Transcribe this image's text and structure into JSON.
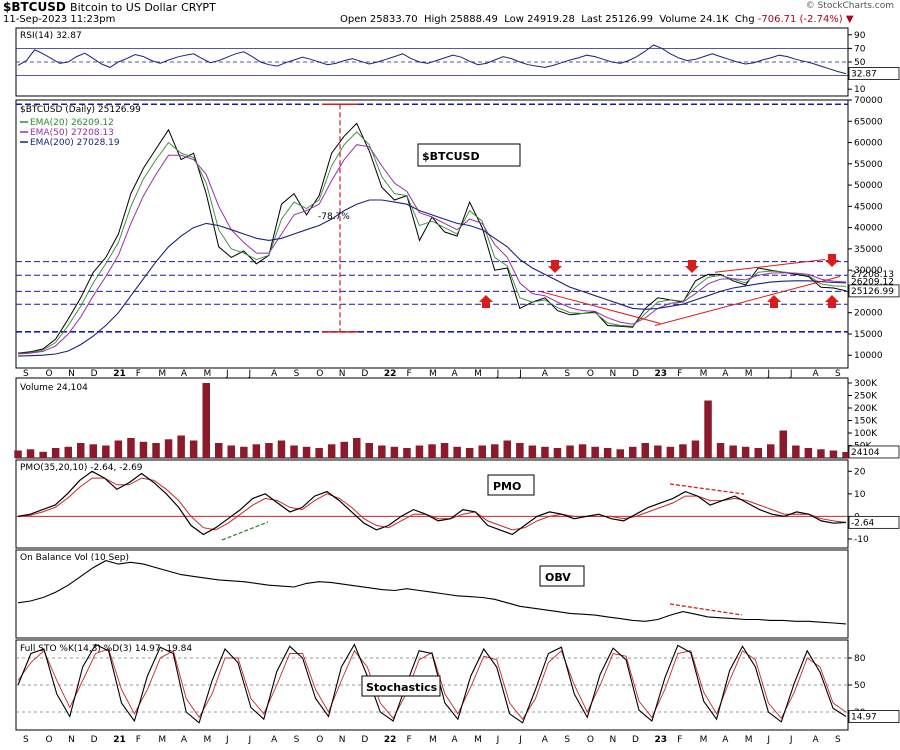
{
  "header": {
    "symbol": "$BTCUSD",
    "name": "Bitcoin to US Dollar",
    "exchange": "CRYPT",
    "date": "11-Sep-2023 11:23pm",
    "watermark": "© StockCharts.com",
    "quote": {
      "open_label": "Open",
      "open": "25833.70",
      "high_label": "High",
      "high": "25888.49",
      "low_label": "Low",
      "low": "24919.28",
      "last_label": "Last",
      "last": "25126.99",
      "volume_label": "Volume",
      "volume": "24.1K",
      "chg_label": "Chg",
      "chg": "-706.71 (-2.74%)"
    }
  },
  "colors": {
    "price": "#000000",
    "ema20": "#2e8b2e",
    "ema50": "#9b2fae",
    "ema200": "#1a237e",
    "rsi": "#1a237e",
    "volume": "#8b1a2b",
    "pmo": "#000000",
    "pmo_signal": "#c62828",
    "support_line": "#1a1aa6",
    "annotation_red": "#d81b1b",
    "annotation_green": "#2e8b2e"
  },
  "chart_data": [
    {
      "type": "line",
      "panel": "rsi",
      "label": "RSI(14) 32.87",
      "last_value_label": "32.87",
      "y_ticks": [
        "90",
        "70",
        "50",
        "30",
        "10"
      ],
      "ylim": [
        0,
        100
      ],
      "values": [
        45,
        52,
        68,
        62,
        55,
        48,
        50,
        58,
        63,
        55,
        47,
        42,
        50,
        55,
        61,
        58,
        52,
        48,
        53,
        57,
        60,
        62,
        55,
        49,
        52,
        57,
        62,
        65,
        58,
        50,
        46,
        44,
        49,
        53,
        57,
        54,
        50,
        46,
        48,
        52,
        55,
        51,
        47,
        50,
        54,
        58,
        62,
        55,
        50,
        48,
        52,
        56,
        60,
        57,
        51,
        46,
        48,
        53,
        58,
        55,
        50,
        46,
        44,
        42,
        45,
        49,
        53,
        56,
        60,
        58,
        54,
        50,
        48,
        52,
        58,
        66,
        75,
        70,
        62,
        56,
        52,
        54,
        58,
        62,
        58,
        54,
        50,
        47,
        49,
        53,
        56,
        60,
        58,
        54,
        51,
        48,
        44,
        40,
        36,
        33
      ]
    },
    {
      "type": "line",
      "panel": "price",
      "title": "$BTCUSD",
      "price_label": "$BTCUSD (Daily) 25126.99",
      "last_value_label": "25126.99",
      "secondary_last_labels": [
        "26209.12",
        "27208.13"
      ],
      "x_tick_labels": [
        "S",
        "O",
        "N",
        "D",
        "21",
        "F",
        "M",
        "A",
        "M",
        "J",
        "J",
        "A",
        "S",
        "O",
        "N",
        "D",
        "22",
        "F",
        "M",
        "A",
        "M",
        "J",
        "J",
        "A",
        "S",
        "O",
        "N",
        "D",
        "23",
        "F",
        "M",
        "A",
        "M",
        "J",
        "J",
        "A",
        "S"
      ],
      "y_ticks": [
        "70000",
        "65000",
        "60000",
        "55000",
        "50000",
        "45000",
        "40000",
        "35000",
        "30000",
        "25000",
        "20000",
        "15000",
        "10000"
      ],
      "ylim": [
        7000,
        70000
      ],
      "series": [
        {
          "name": "$BTCUSD (Daily) 25126.99",
          "values": [
            10500,
            10800,
            11500,
            13800,
            18500,
            23500,
            29500,
            33000,
            38500,
            48000,
            54000,
            58500,
            63000,
            56000,
            57500,
            48000,
            35500,
            33000,
            34500,
            31500,
            33500,
            45500,
            48000,
            43000,
            47500,
            57500,
            61500,
            64500,
            58000,
            49500,
            46500,
            47500,
            37000,
            42500,
            39000,
            38000,
            46000,
            40000,
            30000,
            30500,
            21000,
            22500,
            23500,
            20500,
            19500,
            19800,
            20200,
            17000,
            16800,
            16600,
            21000,
            23500,
            23000,
            22500,
            27500,
            29000,
            29000,
            27500,
            26500,
            30500,
            30000,
            29500,
            29000,
            28500,
            26000,
            25800,
            25126
          ]
        },
        {
          "name": "EMA(20) 26209.12",
          "values": [
            10400,
            10600,
            11200,
            13000,
            17000,
            21500,
            27000,
            31500,
            36500,
            45000,
            51500,
            56000,
            60000,
            57500,
            56500,
            50500,
            39500,
            35000,
            34000,
            32500,
            33500,
            42000,
            46000,
            44500,
            46500,
            54500,
            59500,
            62500,
            59500,
            52000,
            48000,
            47500,
            40500,
            41500,
            40000,
            38500,
            44000,
            41500,
            33000,
            31000,
            23500,
            22500,
            23000,
            21200,
            20000,
            19800,
            20000,
            17600,
            17000,
            16800,
            19800,
            22500,
            23000,
            22700,
            26000,
            28300,
            28800,
            27900,
            27000,
            29500,
            29800,
            29600,
            29200,
            28700,
            26800,
            26300,
            26209
          ]
        },
        {
          "name": "EMA(50) 27208.13",
          "values": [
            10300,
            10500,
            10900,
            12200,
            15000,
            19000,
            24000,
            28500,
            33500,
            41000,
            47500,
            52500,
            57000,
            57000,
            56000,
            52500,
            45000,
            39500,
            36500,
            34000,
            34000,
            38500,
            43000,
            44000,
            45500,
            51000,
            56000,
            59500,
            59000,
            54500,
            50500,
            48500,
            43500,
            42500,
            41000,
            39500,
            42000,
            41000,
            36000,
            33000,
            27000,
            24500,
            24000,
            22500,
            21200,
            20500,
            20300,
            18800,
            17800,
            17300,
            18800,
            21000,
            22200,
            22500,
            24500,
            26800,
            27900,
            28000,
            27700,
            28800,
            29300,
            29400,
            29300,
            29000,
            27900,
            27400,
            27208
          ]
        },
        {
          "name": "EMA(200) 27028.19",
          "values": [
            9800,
            9900,
            10000,
            10300,
            11000,
            12500,
            14500,
            17000,
            20000,
            24000,
            28000,
            32000,
            35500,
            38000,
            40000,
            41000,
            40500,
            39500,
            38500,
            37500,
            37000,
            37500,
            38500,
            39500,
            40500,
            42000,
            44000,
            45500,
            46500,
            46500,
            46000,
            45500,
            44000,
            43000,
            42000,
            41000,
            40500,
            39500,
            37500,
            35500,
            32500,
            30500,
            29000,
            27500,
            26000,
            25000,
            24000,
            23000,
            22000,
            21000,
            20800,
            21000,
            21500,
            22000,
            23000,
            24000,
            25000,
            25800,
            26300,
            26800,
            27200,
            27400,
            27500,
            27500,
            27300,
            27100,
            27028
          ]
        }
      ],
      "annotations": [
        {
          "type": "percent_drop",
          "text": "-78.7%",
          "from": 69000,
          "to": 15500
        },
        {
          "type": "support_level",
          "values": [
            69000,
            15500,
            25000,
            28800,
            32000,
            22000
          ]
        },
        {
          "type": "resistance_arrows_down",
          "count": 3
        },
        {
          "type": "support_arrows_up",
          "count": 3
        }
      ]
    },
    {
      "type": "bar",
      "panel": "volume",
      "label": "Volume 24,104",
      "last_value_label": "24104",
      "y_ticks": [
        "300K",
        "250K",
        "200K",
        "150K",
        "100K",
        "50K"
      ],
      "ylim": [
        0,
        320000
      ],
      "values": [
        30000,
        35000,
        25000,
        40000,
        45000,
        60000,
        55000,
        50000,
        70000,
        80000,
        65000,
        60000,
        75000,
        90000,
        70000,
        300000,
        60000,
        50000,
        45000,
        55000,
        60000,
        70000,
        50000,
        45000,
        40000,
        55000,
        65000,
        80000,
        60000,
        50000,
        45000,
        40000,
        50000,
        55000,
        60000,
        45000,
        40000,
        50000,
        55000,
        70000,
        60000,
        50000,
        45000,
        40000,
        50000,
        55000,
        45000,
        40000,
        35000,
        45000,
        60000,
        50000,
        45000,
        55000,
        70000,
        230000,
        60000,
        50000,
        45000,
        40000,
        55000,
        110000,
        50000,
        40000,
        35000,
        30000,
        24104
      ]
    },
    {
      "type": "line",
      "panel": "pmo",
      "title": "PMO",
      "label": "PMO(35,20,10) -2.64, -2.69",
      "last_value_label": "-2.64",
      "y_ticks": [
        "20",
        "10",
        "0",
        "-10"
      ],
      "ylim": [
        -14,
        25
      ],
      "series": [
        {
          "name": "PMO(35,20,10) -2.64",
          "values": [
            0,
            1,
            3,
            5,
            10,
            16,
            20,
            17,
            12,
            15,
            19,
            15,
            10,
            4,
            -4,
            -8,
            -5,
            -1,
            3,
            8,
            10,
            6,
            2,
            4,
            9,
            11,
            7,
            2,
            -3,
            -6,
            -4,
            0,
            3,
            1,
            -2,
            -1,
            3,
            2,
            -4,
            -6,
            -8,
            -4,
            0,
            2,
            1,
            -1,
            0,
            1,
            -1,
            -2,
            1,
            4,
            6,
            8,
            11,
            9,
            5,
            7,
            9,
            6,
            3,
            1,
            0,
            2,
            1,
            -2,
            -3,
            -2.64
          ]
        },
        {
          "name": "-2.69",
          "values": [
            0,
            0.5,
            2,
            4,
            8,
            13,
            17,
            17,
            14,
            14,
            17,
            16,
            12,
            7,
            0,
            -5,
            -6,
            -3,
            1,
            5,
            8,
            7,
            4,
            3,
            7,
            10,
            8,
            4,
            -1,
            -4,
            -5,
            -2,
            1,
            1,
            -1,
            -1,
            1,
            2,
            -2,
            -4,
            -6,
            -5,
            -2,
            0,
            1,
            0,
            0,
            0,
            0,
            -1,
            0,
            2,
            4,
            6,
            9,
            9,
            7,
            7,
            8,
            7,
            5,
            3,
            1,
            1,
            1,
            -1,
            -2,
            -2.69
          ]
        }
      ]
    },
    {
      "type": "line",
      "panel": "obv",
      "title": "OBV",
      "label": "On Balance Vol (10 Sep)",
      "values": [
        40,
        42,
        46,
        52,
        60,
        70,
        80,
        88,
        84,
        86,
        84,
        80,
        76,
        72,
        70,
        68,
        66,
        65,
        64,
        62,
        60,
        59,
        58,
        62,
        64,
        63,
        61,
        59,
        57,
        55,
        54,
        56,
        54,
        52,
        50,
        48,
        47,
        46,
        44,
        40,
        36,
        34,
        32,
        30,
        28,
        27,
        26,
        24,
        22,
        20,
        19,
        21,
        26,
        30,
        27,
        24,
        23,
        22,
        21,
        21,
        20,
        20,
        19,
        19,
        18,
        17,
        16
      ]
    },
    {
      "type": "line",
      "panel": "stochastics",
      "title": "Stochastics",
      "label": "Full STO %K(14,3) %D(3) 14.97, 19.84",
      "last_value_label": "14.97",
      "y_ticks": [
        "80",
        "50",
        "20"
      ],
      "ylim": [
        0,
        100
      ],
      "series": [
        {
          "name": "Full STO %K(14,3) 14.97",
          "values": [
            50,
            85,
            90,
            40,
            15,
            70,
            95,
            88,
            30,
            10,
            60,
            92,
            85,
            20,
            8,
            55,
            90,
            75,
            25,
            12,
            65,
            93,
            80,
            35,
            15,
            70,
            95,
            60,
            20,
            10,
            50,
            88,
            85,
            30,
            12,
            60,
            90,
            70,
            18,
            8,
            45,
            85,
            92,
            40,
            14,
            62,
            91,
            78,
            22,
            10,
            58,
            94,
            86,
            32,
            12,
            66,
            93,
            70,
            20,
            9,
            52,
            88,
            64,
            24,
            14.97
          ]
        },
        {
          "name": "19.84",
          "values": [
            55,
            75,
            88,
            55,
            25,
            55,
            85,
            90,
            45,
            18,
            45,
            80,
            88,
            35,
            14,
            40,
            80,
            80,
            35,
            18,
            50,
            85,
            85,
            45,
            20,
            55,
            88,
            70,
            30,
            13,
            40,
            78,
            86,
            40,
            18,
            48,
            82,
            78,
            30,
            12,
            35,
            75,
            88,
            50,
            20,
            50,
            85,
            82,
            32,
            14,
            45,
            85,
            88,
            42,
            18,
            55,
            88,
            78,
            30,
            13,
            42,
            80,
            70,
            30,
            19.84
          ]
        }
      ]
    }
  ]
}
